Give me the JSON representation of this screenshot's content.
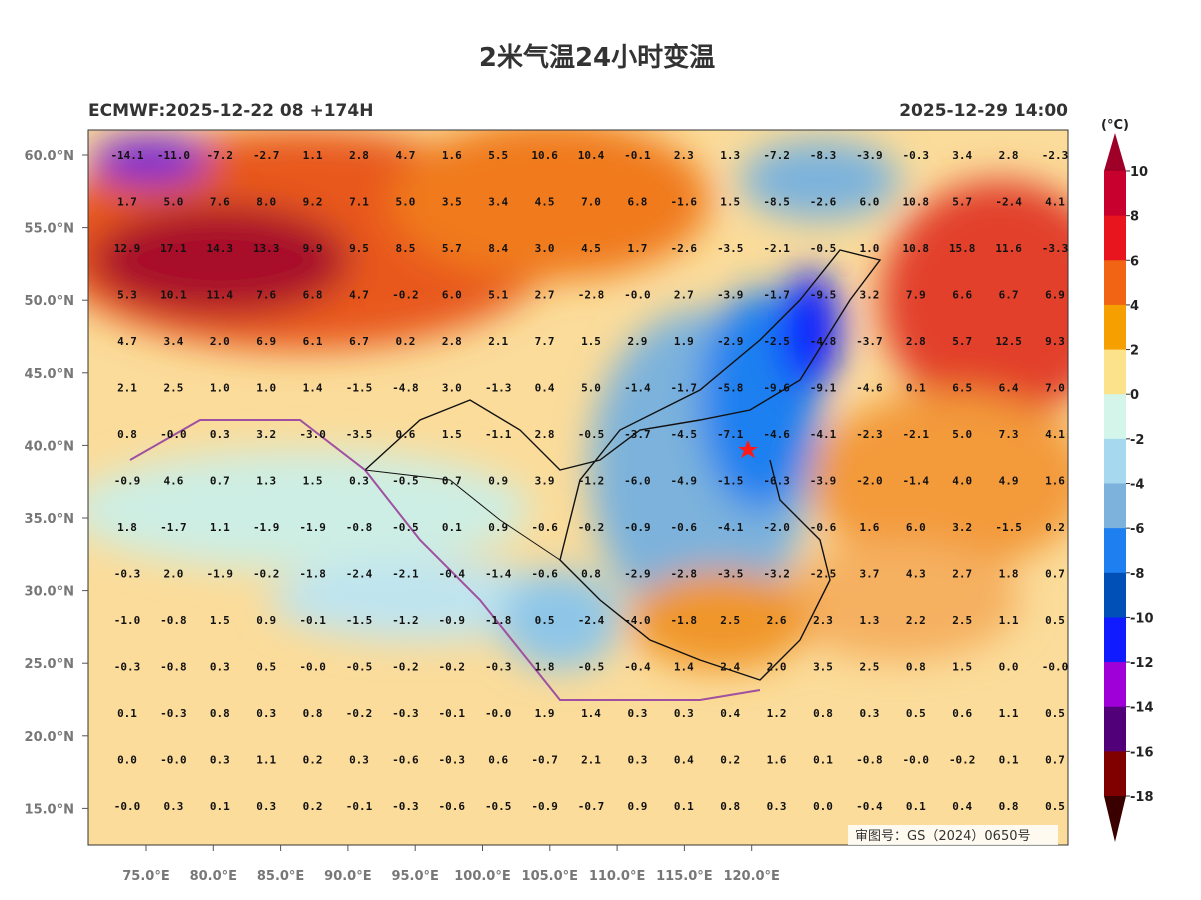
{
  "title": "2米气温24小时变温",
  "model_run": "ECMWF:2025-12-22 08 +174H",
  "valid_time": "2025-12-29 14:00",
  "approval": "审图号：GS（2024）0650号",
  "lat_labels": [
    "60.0°N",
    "55.0°N",
    "50.0°N",
    "45.0°N",
    "40.0°N",
    "35.0°N",
    "30.0°N",
    "25.0°N",
    "20.0°N",
    "15.0°N"
  ],
  "lon_labels": [
    "75.0°E",
    "80.0°E",
    "85.0°E",
    "90.0°E",
    "95.0°E",
    "100.0°E",
    "105.0°E",
    "110.0°E",
    "115.0°E",
    "120.0°E"
  ],
  "colorbar": {
    "unit": "(°C)",
    "ticks": [
      10,
      8,
      6,
      4,
      2,
      0,
      -2,
      -4,
      -6,
      -8,
      -10,
      -12,
      -14,
      -16,
      -18
    ],
    "colors": [
      "#9e0028",
      "#c8002e",
      "#e8141e",
      "#f06414",
      "#f5a000",
      "#fde28c",
      "#d4f5ea",
      "#a6d8f0",
      "#7cb2dc",
      "#1e80f0",
      "#0050b8",
      "#101cff",
      "#a000d8",
      "#52007a",
      "#800000",
      "#3a0000"
    ]
  },
  "grid": {
    "rows": [
      [
        "-14.1",
        "-11.0",
        "-7.2",
        "-2.7",
        "1.1",
        "2.8",
        "4.7",
        "1.6",
        "5.5",
        "10.6",
        "10.4",
        "-0.1",
        "2.3",
        "1.3",
        "-7.2",
        "-8.3",
        "-3.9",
        "-0.3",
        "3.4",
        "2.8",
        "-2.3"
      ],
      [
        "1.7",
        "5.0",
        "7.6",
        "8.0",
        "9.2",
        "7.1",
        "5.0",
        "3.5",
        "3.4",
        "4.5",
        "7.0",
        "6.8",
        "-1.6",
        "1.5",
        "-8.5",
        "-2.6",
        "6.0",
        "10.8",
        "5.7",
        "-2.4",
        "4.1"
      ],
      [
        "12.9",
        "17.1",
        "14.3",
        "13.3",
        "9.9",
        "9.5",
        "8.5",
        "5.7",
        "8.4",
        "3.0",
        "4.5",
        "1.7",
        "-2.6",
        "-3.5",
        "-2.1",
        "-0.5",
        "1.0",
        "10.8",
        "15.8",
        "11.6",
        "-3.3"
      ],
      [
        "5.3",
        "10.1",
        "11.4",
        "7.6",
        "6.8",
        "4.7",
        "-0.2",
        "6.0",
        "5.1",
        "2.7",
        "-2.8",
        "-0.0",
        "2.7",
        "-3.9",
        "-1.7",
        "-9.5",
        "3.2",
        "7.9",
        "6.6",
        "6.7",
        "6.9"
      ],
      [
        "4.7",
        "3.4",
        "2.0",
        "6.9",
        "6.1",
        "6.7",
        "0.2",
        "2.8",
        "2.1",
        "7.7",
        "1.5",
        "2.9",
        "1.9",
        "-2.9",
        "-2.5",
        "-4.8",
        "-3.7",
        "2.8",
        "5.7",
        "12.5",
        "9.3"
      ],
      [
        "2.1",
        "2.5",
        "1.0",
        "1.0",
        "1.4",
        "-1.5",
        "-4.8",
        "3.0",
        "-1.3",
        "0.4",
        "5.0",
        "-1.4",
        "-1.7",
        "-5.8",
        "-9.6",
        "-9.1",
        "-4.6",
        "0.1",
        "6.5",
        "6.4",
        "7.0"
      ],
      [
        "0.8",
        "-0.0",
        "0.3",
        "3.2",
        "-3.0",
        "-3.5",
        "0.6",
        "1.5",
        "-1.1",
        "2.8",
        "-0.5",
        "-3.7",
        "-4.5",
        "-7.1",
        "-4.6",
        "-4.1",
        "-2.3",
        "-2.1",
        "5.0",
        "7.3",
        "4.1"
      ],
      [
        "-0.9",
        "4.6",
        "0.7",
        "1.3",
        "1.5",
        "0.3",
        "-0.5",
        "0.7",
        "0.9",
        "3.9",
        "-1.2",
        "-6.0",
        "-4.9",
        "-1.5",
        "-6.3",
        "-3.9",
        "-2.0",
        "-1.4",
        "4.0",
        "4.9",
        "1.6"
      ],
      [
        "1.8",
        "-1.7",
        "1.1",
        "-1.9",
        "-1.9",
        "-0.8",
        "-0.5",
        "0.1",
        "0.9",
        "-0.6",
        "-0.2",
        "-0.9",
        "-0.6",
        "-4.1",
        "-2.0",
        "-0.6",
        "1.6",
        "6.0",
        "3.2",
        "-1.5",
        "0.2"
      ],
      [
        "-0.3",
        "2.0",
        "-1.9",
        "-0.2",
        "-1.8",
        "-2.4",
        "-2.1",
        "-0.4",
        "-1.4",
        "-0.6",
        "0.8",
        "-2.9",
        "-2.8",
        "-3.5",
        "-3.2",
        "-2.5",
        "3.7",
        "4.3",
        "2.7",
        "1.8",
        "0.7"
      ],
      [
        "-1.0",
        "-0.8",
        "1.5",
        "0.9",
        "-0.1",
        "-1.5",
        "-1.2",
        "-0.9",
        "-1.8",
        "0.5",
        "-2.4",
        "-4.0",
        "-1.8",
        "2.5",
        "2.6",
        "2.3",
        "1.3",
        "2.2",
        "2.5",
        "1.1",
        "0.5"
      ],
      [
        "-0.3",
        "-0.8",
        "0.3",
        "0.5",
        "-0.0",
        "-0.5",
        "-0.2",
        "-0.2",
        "-0.3",
        "1.8",
        "-0.5",
        "-0.4",
        "1.4",
        "2.4",
        "2.0",
        "3.5",
        "2.5",
        "0.8",
        "1.5",
        "0.0",
        "-0.0"
      ],
      [
        "0.1",
        "-0.3",
        "0.8",
        "0.3",
        "0.8",
        "-0.2",
        "-0.3",
        "-0.1",
        "-0.0",
        "1.9",
        "1.4",
        "0.3",
        "0.3",
        "0.4",
        "1.2",
        "0.8",
        "0.3",
        "0.5",
        "0.6",
        "1.1",
        "0.5"
      ],
      [
        "0.0",
        "-0.0",
        "0.3",
        "1.1",
        "0.2",
        "0.3",
        "-0.6",
        "-0.3",
        "0.6",
        "-0.7",
        "2.1",
        "0.3",
        "0.4",
        "0.2",
        "1.6",
        "0.1",
        "-0.8",
        "-0.0",
        "-0.2",
        "0.1",
        "0.7"
      ],
      [
        "-0.0",
        "0.3",
        "0.1",
        "0.3",
        "0.2",
        "-0.1",
        "-0.3",
        "-0.6",
        "-0.5",
        "-0.9",
        "-0.7",
        "0.9",
        "0.1",
        "0.8",
        "0.3",
        "0.0",
        "-0.4",
        "0.1",
        "0.4",
        "0.8",
        "0.5"
      ]
    ]
  }
}
